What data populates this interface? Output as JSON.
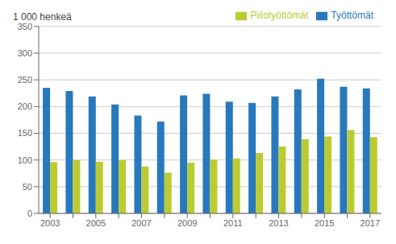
{
  "chart_data": {
    "type": "bar",
    "ylabel": "1 000 henkeä",
    "categories": [
      "2003",
      null,
      "2005",
      null,
      "2007",
      null,
      "2009",
      null,
      "2011",
      null,
      "2013",
      null,
      "2015",
      null,
      "2017"
    ],
    "series": [
      {
        "name": "Työttömät",
        "color": "#2878BE",
        "values": [
          235,
          229,
          219,
          204,
          183,
          172,
          221,
          224,
          209,
          207,
          219,
          232,
          252,
          237,
          234
        ]
      },
      {
        "name": "Piilotyöttömät",
        "color": "#BBCC33",
        "values": [
          96,
          100,
          97,
          100,
          88,
          76,
          95,
          101,
          103,
          113,
          125,
          139,
          144,
          156,
          143
        ]
      }
    ],
    "ylim": [
      0,
      350
    ],
    "yticks": [
      0,
      50,
      100,
      150,
      200,
      250,
      300,
      350
    ],
    "grid": true,
    "legend": "upper right"
  }
}
